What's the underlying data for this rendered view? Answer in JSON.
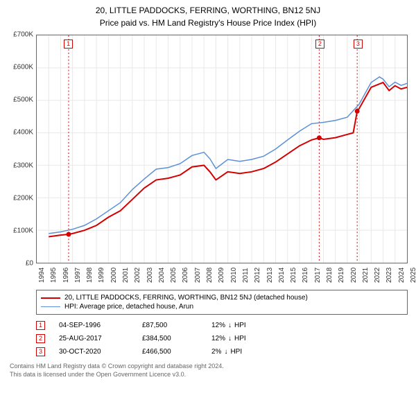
{
  "title": "20, LITTLE PADDOCKS, FERRING, WORTHING, BN12 5NJ",
  "subtitle": "Price paid vs. HM Land Registry's House Price Index (HPI)",
  "chart": {
    "type": "line",
    "background_color": "#ffffff",
    "grid_color": "#e8e8e8",
    "border_color": "#666666",
    "label_fontsize": 10,
    "x": {
      "min": 1994,
      "max": 2025,
      "tick_step": 1
    },
    "y": {
      "min": 0,
      "max": 700000,
      "tick_step": 100000,
      "prefix": "£",
      "suffix": "K",
      "divide": 1000
    },
    "series": [
      {
        "name": "20, LITTLE PADDOCKS, FERRING, WORTHING, BN12 5NJ (detached house)",
        "color": "#d40000",
        "width": 2,
        "points": [
          [
            1995,
            80000
          ],
          [
            1996,
            85000
          ],
          [
            1996.67,
            87500
          ],
          [
            1997,
            90000
          ],
          [
            1998,
            100000
          ],
          [
            1999,
            115000
          ],
          [
            2000,
            140000
          ],
          [
            2001,
            160000
          ],
          [
            2002,
            195000
          ],
          [
            2003,
            230000
          ],
          [
            2004,
            255000
          ],
          [
            2005,
            260000
          ],
          [
            2006,
            270000
          ],
          [
            2007,
            295000
          ],
          [
            2008,
            300000
          ],
          [
            2008.5,
            280000
          ],
          [
            2009,
            255000
          ],
          [
            2010,
            280000
          ],
          [
            2011,
            275000
          ],
          [
            2012,
            280000
          ],
          [
            2013,
            290000
          ],
          [
            2014,
            310000
          ],
          [
            2015,
            335000
          ],
          [
            2016,
            360000
          ],
          [
            2017,
            378000
          ],
          [
            2017.65,
            384500
          ],
          [
            2018,
            380000
          ],
          [
            2019,
            385000
          ],
          [
            2020,
            395000
          ],
          [
            2020.5,
            400000
          ],
          [
            2020.83,
            466500
          ],
          [
            2021,
            475000
          ],
          [
            2022,
            540000
          ],
          [
            2023,
            555000
          ],
          [
            2023.5,
            530000
          ],
          [
            2024,
            545000
          ],
          [
            2024.5,
            535000
          ],
          [
            2025,
            540000
          ]
        ]
      },
      {
        "name": "HPI: Average price, detached house, Arun",
        "color": "#5b8fd6",
        "width": 1.5,
        "points": [
          [
            1995,
            90000
          ],
          [
            1996,
            95000
          ],
          [
            1997,
            103000
          ],
          [
            1998,
            115000
          ],
          [
            1999,
            135000
          ],
          [
            2000,
            160000
          ],
          [
            2001,
            185000
          ],
          [
            2002,
            225000
          ],
          [
            2003,
            258000
          ],
          [
            2004,
            288000
          ],
          [
            2005,
            293000
          ],
          [
            2006,
            305000
          ],
          [
            2007,
            330000
          ],
          [
            2008,
            340000
          ],
          [
            2008.5,
            320000
          ],
          [
            2009,
            290000
          ],
          [
            2010,
            318000
          ],
          [
            2011,
            312000
          ],
          [
            2012,
            318000
          ],
          [
            2013,
            328000
          ],
          [
            2014,
            350000
          ],
          [
            2015,
            378000
          ],
          [
            2016,
            405000
          ],
          [
            2017,
            428000
          ],
          [
            2018,
            432000
          ],
          [
            2019,
            438000
          ],
          [
            2020,
            448000
          ],
          [
            2021,
            488000
          ],
          [
            2022,
            555000
          ],
          [
            2022.7,
            572000
          ],
          [
            2023,
            565000
          ],
          [
            2023.5,
            542000
          ],
          [
            2024,
            556000
          ],
          [
            2024.5,
            546000
          ],
          [
            2025,
            552000
          ]
        ]
      }
    ],
    "markers": [
      {
        "id": "1",
        "x": 1996.67,
        "y": 87500,
        "box_y_offset": -16
      },
      {
        "id": "2",
        "x": 2017.65,
        "y": 384500,
        "box_y_offset": -16
      },
      {
        "id": "3",
        "x": 2020.83,
        "y": 466500,
        "box_y_offset": -16
      }
    ],
    "marker_line_color": "#d40000",
    "marker_line_dash": "2,3",
    "marker_dot_color": "#d40000"
  },
  "transactions": [
    {
      "id": "1",
      "date": "04-SEP-1996",
      "price": "£87,500",
      "diff_pct": "12%",
      "diff_dir": "↓",
      "diff_ref": "HPI"
    },
    {
      "id": "2",
      "date": "25-AUG-2017",
      "price": "£384,500",
      "diff_pct": "12%",
      "diff_dir": "↓",
      "diff_ref": "HPI"
    },
    {
      "id": "3",
      "date": "30-OCT-2020",
      "price": "£466,500",
      "diff_pct": "2%",
      "diff_dir": "↓",
      "diff_ref": "HPI"
    }
  ],
  "footer": {
    "line1": "Contains HM Land Registry data © Crown copyright and database right 2024.",
    "line2": "This data is licensed under the Open Government Licence v3.0."
  }
}
